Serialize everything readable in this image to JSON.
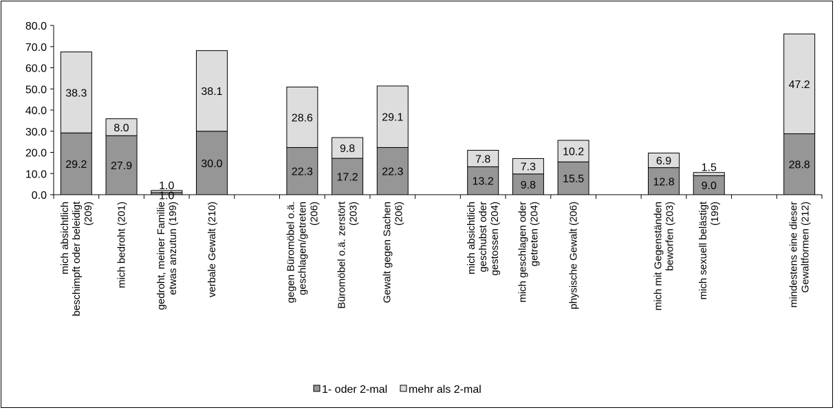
{
  "chart_data": {
    "type": "bar",
    "stacked": true,
    "categories": [
      "mich absichtlich beschimpft oder beleidigt (209)",
      "mich bedroht (201)",
      "gedroht, meiner Familie etwas anzutun (199)",
      "verbale Gewalt (210)",
      "",
      "gegen Büromöbel o.ä. geschlagen/getreten (206)",
      "Büromöbel o.ä. zerstört (203)",
      "Gewalt gegen Sachen (206)",
      "",
      "mich absichtlich geschubst oder gestossen (204)",
      "mich geschlagen oder getreten (204)",
      "physische Gewalt (206)",
      "",
      "mich mit Gegenständen beworfen (203)",
      "mich sexuell belästigt (199)",
      "",
      "mindestens eine dieser Gewaltformen (212)"
    ],
    "category_lines": [
      [
        "mich absichtlich",
        "beschimpft oder beleidigt",
        "(209)"
      ],
      [
        "mich bedroht (201)"
      ],
      [
        "gedroht, meiner Familie",
        "etwas anzutun (199)"
      ],
      [
        "verbale Gewalt (210)"
      ],
      [],
      [
        "gegen Büromöbel o.ä.",
        "geschlagen/getreten",
        "(206)"
      ],
      [
        "Büromöbel o.ä. zerstört",
        "(203)"
      ],
      [
        "Gewalt gegen Sachen",
        "(206)"
      ],
      [],
      [
        "mich absichtlich",
        "geschubst oder",
        "gestossen (204)"
      ],
      [
        "mich geschlagen oder",
        "getreten (204)"
      ],
      [
        "physische Gewalt (206)"
      ],
      [],
      [
        "mich mit Gegenständen",
        "beworfen (203)"
      ],
      [
        "mich sexuell belästigt",
        "(199)"
      ],
      [],
      [
        "mindestens eine dieser",
        "Gewaltformen (212)"
      ]
    ],
    "series": [
      {
        "name": "1- oder 2-mal",
        "color": "#969696",
        "values": [
          29.2,
          27.9,
          1.0,
          30.0,
          null,
          22.3,
          17.2,
          22.3,
          null,
          13.2,
          9.8,
          15.5,
          null,
          12.8,
          9.0,
          null,
          28.8
        ]
      },
      {
        "name": "mehr als 2-mal",
        "color": "#dddddd",
        "values": [
          38.3,
          8.0,
          1.0,
          38.1,
          null,
          28.6,
          9.8,
          29.1,
          null,
          7.8,
          7.3,
          10.2,
          null,
          6.9,
          1.5,
          null,
          47.2
        ]
      }
    ],
    "data_labels_series1": [
      "29.2",
      "27.9",
      "1.0",
      "30.0",
      "",
      "22.3",
      "17.2",
      "22.3",
      "",
      "13.2",
      "9.8",
      "15.5",
      "",
      "12.8",
      "9.0",
      "",
      "28.8"
    ],
    "data_labels_series2": [
      "38.3",
      "8.0",
      "1.0",
      "38.1",
      "",
      "28.6",
      "9.8",
      "29.1",
      "",
      "7.8",
      "7.3",
      "10.2",
      "",
      "6.9",
      "1.5",
      "",
      "47.2"
    ],
    "y_ticks": [
      "0.0",
      "10.0",
      "20.0",
      "30.0",
      "40.0",
      "50.0",
      "60.0",
      "70.0",
      "80.0"
    ],
    "ylim": [
      0,
      80
    ],
    "title": "",
    "xlabel": "",
    "ylabel": "",
    "grid": false,
    "legend_position": "bottom"
  }
}
